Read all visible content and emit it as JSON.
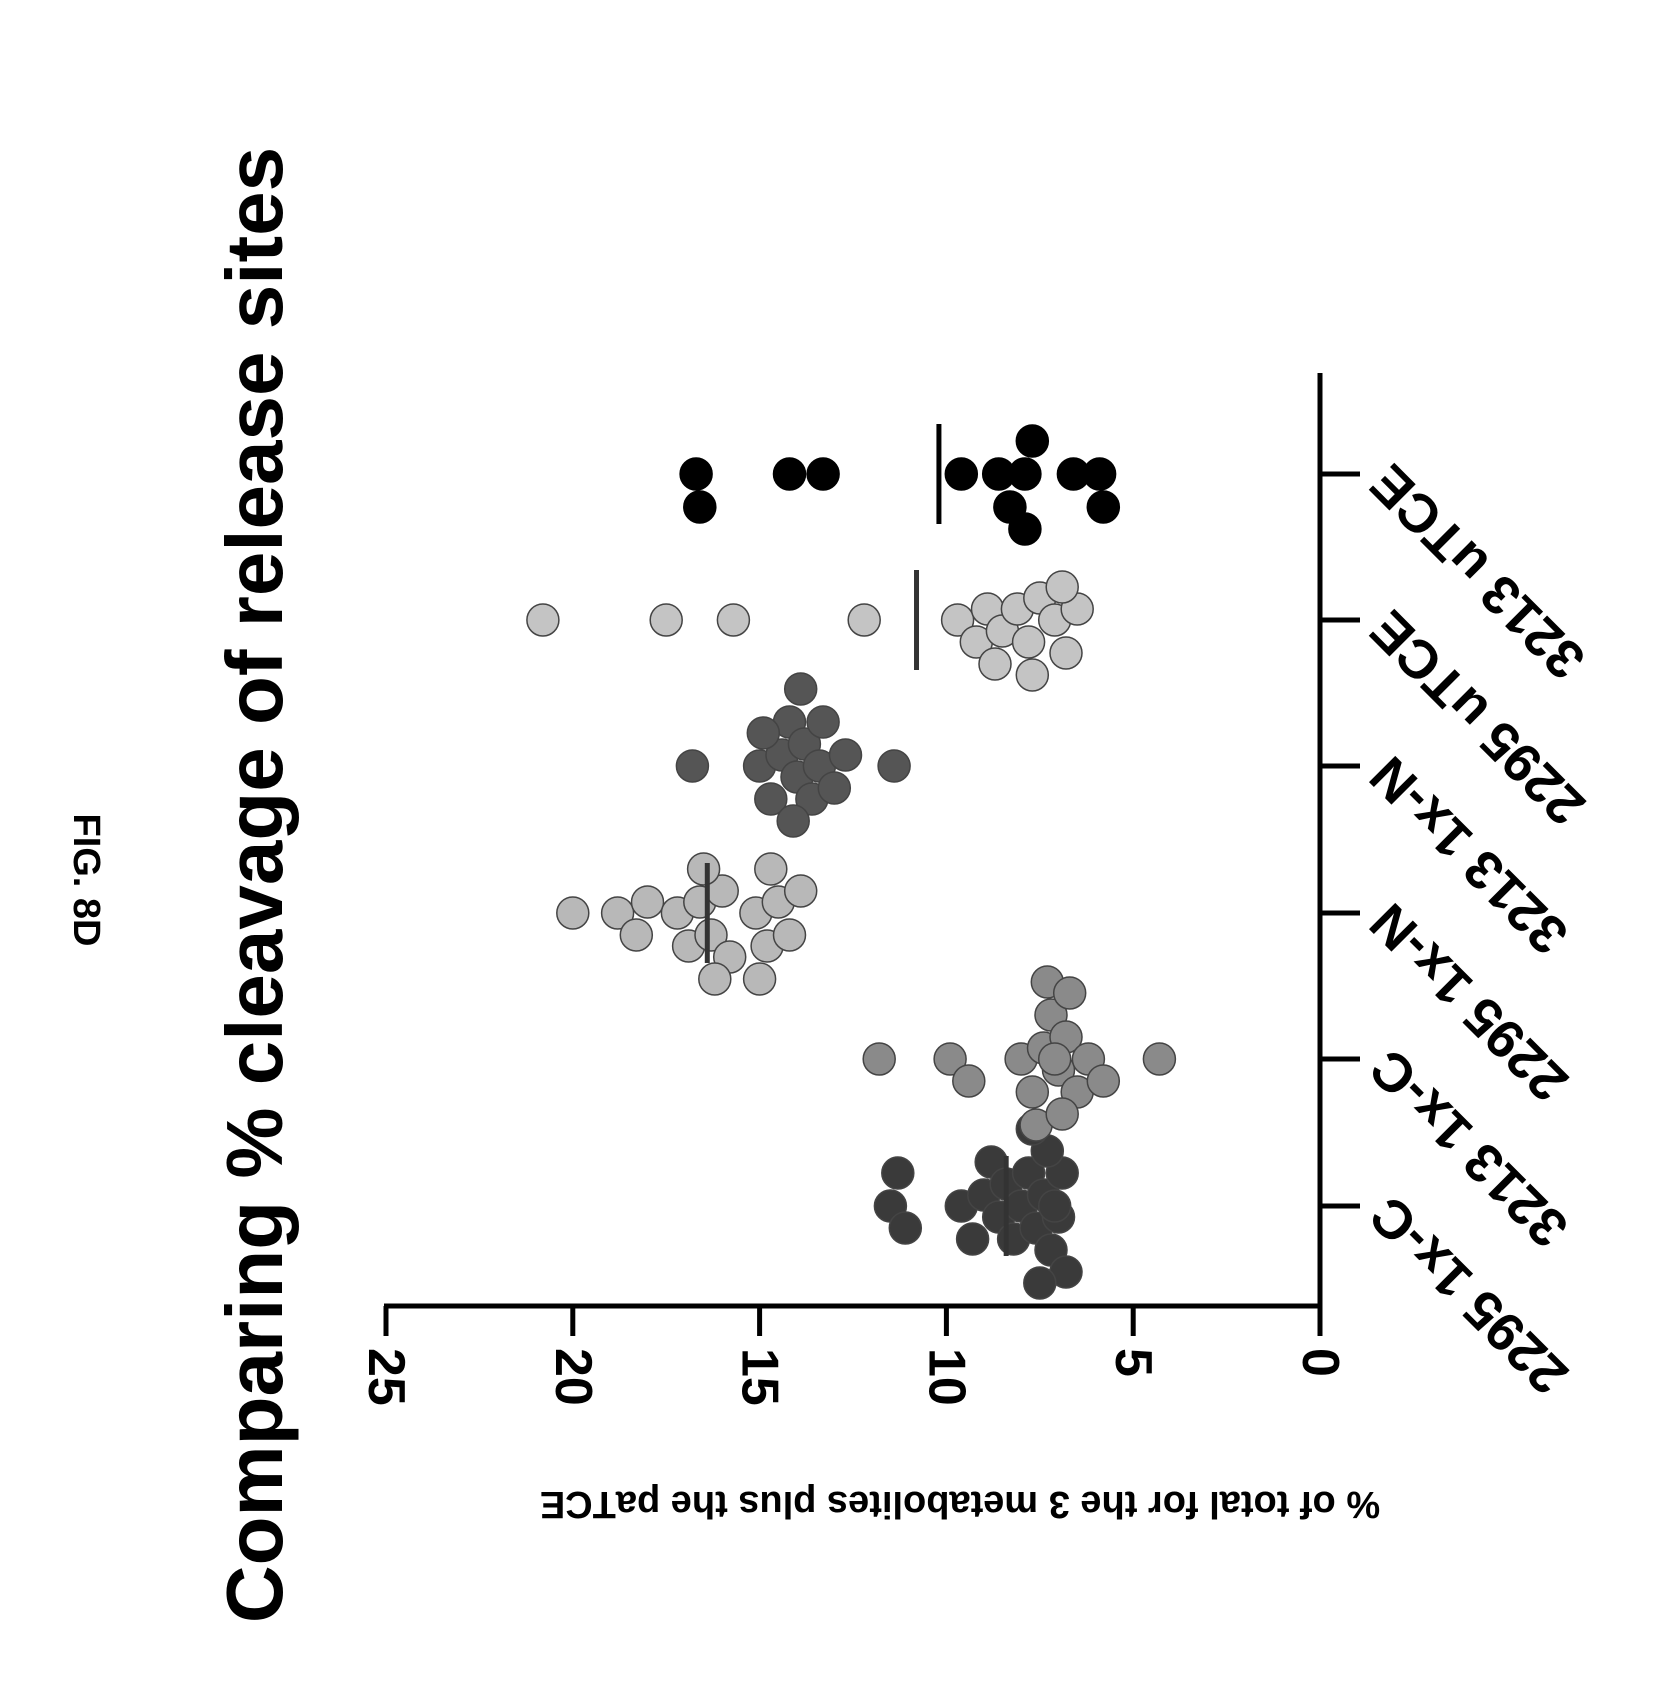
{
  "figure_label": "FIG. 8D",
  "chart_data": {
    "type": "scatter",
    "title": "Comparing % cleavage of release sites",
    "xlabel": "",
    "ylabel": "% of total for the 3 metabolites plus the paTCE",
    "ylim": [
      0,
      25
    ],
    "yticks": [
      "0",
      "5",
      "10",
      "15",
      "20",
      "25"
    ],
    "grid": false,
    "categories": [
      "2295 1x-C",
      "3213 1x-C",
      "2295 1x-N",
      "3213 1x-N",
      "2295 uTCE",
      "3213 uTCE"
    ],
    "series": [
      {
        "category": "2295 1x-C",
        "fill": "#3a3a3a",
        "median": 8.4,
        "values": [
          11.5,
          11.1,
          11.3,
          9.6,
          9.3,
          9.0,
          8.8,
          8.6,
          8.4,
          8.2,
          8.0,
          7.8,
          7.6,
          7.4,
          7.2,
          7.0,
          6.9,
          6.8,
          7.3,
          7.1,
          7.5,
          7.7
        ]
      },
      {
        "category": "3213 1x-C",
        "fill": "#8a8a8a",
        "median": null,
        "values": [
          11.8,
          9.9,
          9.4,
          8.0,
          7.7,
          7.4,
          7.2,
          7.0,
          6.8,
          6.5,
          6.2,
          5.8,
          4.3,
          7.6,
          7.3,
          6.9,
          7.1,
          6.7
        ]
      },
      {
        "category": "2295 1x-N",
        "fill": "#b8b8b8",
        "median": 16.4,
        "values": [
          20.0,
          18.8,
          18.3,
          18.0,
          17.2,
          16.9,
          16.6,
          16.3,
          16.0,
          15.8,
          15.1,
          14.8,
          14.5,
          14.2,
          13.9,
          16.5,
          16.2,
          14.7,
          15.0
        ]
      },
      {
        "category": "3213 1x-N",
        "fill": "#555555",
        "median": null,
        "values": [
          16.8,
          15.0,
          14.7,
          14.4,
          14.2,
          14.0,
          13.8,
          13.6,
          13.4,
          13.0,
          12.7,
          11.4,
          14.9,
          14.1,
          13.9,
          13.3
        ]
      },
      {
        "category": "2295 uTCE",
        "fill": "#c4c4c4",
        "median": 10.8,
        "values": [
          20.8,
          17.5,
          15.7,
          12.2,
          9.7,
          9.2,
          8.9,
          8.5,
          8.1,
          7.8,
          7.5,
          7.1,
          6.8,
          6.5,
          8.7,
          7.7,
          6.9
        ]
      },
      {
        "category": "3213 uTCE",
        "fill": "#000000",
        "median": 10.2,
        "values": [
          16.7,
          16.6,
          14.2,
          13.3,
          9.6,
          8.6,
          8.3,
          7.9,
          7.7,
          6.6,
          5.9,
          7.9,
          5.8
        ]
      }
    ]
  }
}
